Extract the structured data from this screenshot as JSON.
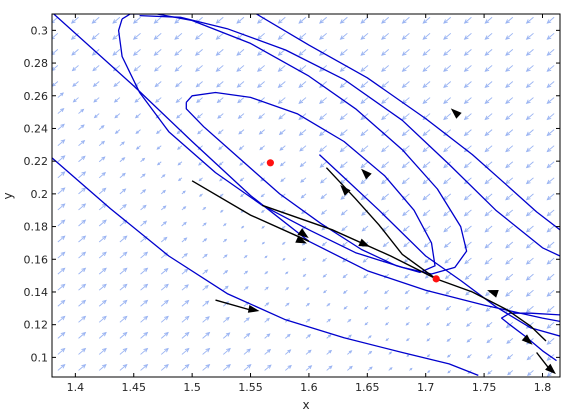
{
  "chart_data": {
    "type": "line",
    "title": "",
    "xlabel": "x",
    "ylabel": "y",
    "xlim": [
      1.38,
      1.815
    ],
    "ylim": [
      0.088,
      0.31
    ],
    "x_ticks": [
      1.4,
      1.45,
      1.5,
      1.55,
      1.6,
      1.65,
      1.7,
      1.75,
      1.8
    ],
    "y_ticks": [
      0.1,
      0.12,
      0.14,
      0.16,
      0.18,
      0.2,
      0.22,
      0.24,
      0.26,
      0.28,
      0.3
    ],
    "grid": false,
    "legend": "none",
    "colors": {
      "orbit": "#0000cd",
      "separatrix": "#000000",
      "equilibrium": "#ff1010",
      "vector_field": "#99b3f2"
    },
    "vector_field": {
      "x_range": [
        1.385,
        1.81
      ],
      "y_range": [
        0.092,
        0.308
      ],
      "columns": 25,
      "rows": 23
    },
    "equilibria": [
      {
        "x": 1.567,
        "y": 0.219
      },
      {
        "x": 1.709,
        "y": 0.148
      }
    ],
    "series": [
      {
        "values": [
          [
            1.38,
            0.311
          ],
          [
            1.45,
            0.266
          ],
          [
            1.5,
            0.232
          ],
          [
            1.55,
            0.199
          ],
          [
            1.6,
            0.171
          ],
          [
            1.65,
            0.153
          ],
          [
            1.7,
            0.141
          ],
          [
            1.75,
            0.132
          ],
          [
            1.8,
            0.124
          ],
          [
            1.815,
            0.122
          ]
        ]
      },
      {
        "values": [
          [
            1.38,
            0.222
          ],
          [
            1.43,
            0.191
          ],
          [
            1.48,
            0.162
          ],
          [
            1.53,
            0.139
          ],
          [
            1.58,
            0.123
          ],
          [
            1.63,
            0.112
          ],
          [
            1.68,
            0.103
          ],
          [
            1.72,
            0.096
          ],
          [
            1.745,
            0.089
          ]
        ]
      },
      {
        "values": [
          [
            1.455,
            0.309
          ],
          [
            1.49,
            0.308
          ],
          [
            1.53,
            0.301
          ],
          [
            1.58,
            0.288
          ],
          [
            1.63,
            0.27
          ],
          [
            1.68,
            0.245
          ],
          [
            1.72,
            0.218
          ],
          [
            1.76,
            0.19
          ],
          [
            1.8,
            0.167
          ],
          [
            1.815,
            0.162
          ]
        ]
      },
      {
        "values": [
          [
            1.555,
            0.31
          ],
          [
            1.6,
            0.291
          ],
          [
            1.65,
            0.271
          ],
          [
            1.7,
            0.246
          ],
          [
            1.74,
            0.224
          ],
          [
            1.77,
            0.205
          ],
          [
            1.795,
            0.189
          ],
          [
            1.815,
            0.178
          ]
        ]
      },
      {
        "values": [
          [
            1.609,
            0.224
          ],
          [
            1.63,
            0.21
          ],
          [
            1.66,
            0.19
          ],
          [
            1.7,
            0.162
          ],
          [
            1.73,
            0.147
          ],
          [
            1.76,
            0.131
          ],
          [
            1.79,
            0.118
          ],
          [
            1.815,
            0.113
          ]
        ]
      },
      {
        "values": [
          [
            1.815,
            0.126
          ],
          [
            1.79,
            0.127
          ],
          [
            1.772,
            0.127
          ],
          [
            1.765,
            0.124
          ],
          [
            1.772,
            0.12
          ],
          [
            1.785,
            0.113
          ],
          [
            1.8,
            0.104
          ],
          [
            1.812,
            0.098
          ]
        ]
      },
      {
        "values": [
          [
            1.44,
            0.307
          ],
          [
            1.447,
            0.31
          ],
          [
            1.47,
            0.31
          ],
          [
            1.5,
            0.306
          ],
          [
            1.55,
            0.292
          ],
          [
            1.6,
            0.272
          ],
          [
            1.64,
            0.252
          ],
          [
            1.68,
            0.227
          ],
          [
            1.71,
            0.203
          ],
          [
            1.73,
            0.18
          ],
          [
            1.735,
            0.165
          ],
          [
            1.725,
            0.155
          ],
          [
            1.705,
            0.151
          ],
          [
            1.68,
            0.155
          ],
          [
            1.64,
            0.164
          ],
          [
            1.6,
            0.178
          ],
          [
            1.56,
            0.193
          ],
          [
            1.52,
            0.213
          ],
          [
            1.48,
            0.238
          ],
          [
            1.455,
            0.262
          ],
          [
            1.44,
            0.284
          ],
          [
            1.437,
            0.3
          ],
          [
            1.44,
            0.307
          ]
        ]
      },
      {
        "values": [
          [
            1.495,
            0.256
          ],
          [
            1.5,
            0.26
          ],
          [
            1.52,
            0.262
          ],
          [
            1.55,
            0.259
          ],
          [
            1.59,
            0.249
          ],
          [
            1.63,
            0.232
          ],
          [
            1.665,
            0.211
          ],
          [
            1.69,
            0.19
          ],
          [
            1.705,
            0.17
          ],
          [
            1.708,
            0.156
          ],
          [
            1.695,
            0.152
          ],
          [
            1.675,
            0.156
          ],
          [
            1.645,
            0.166
          ],
          [
            1.61,
            0.182
          ],
          [
            1.575,
            0.2
          ],
          [
            1.54,
            0.222
          ],
          [
            1.51,
            0.241
          ],
          [
            1.495,
            0.252
          ],
          [
            1.495,
            0.256
          ]
        ]
      }
    ],
    "separatrices": [
      {
        "values": [
          [
            1.709,
            0.148
          ],
          [
            1.68,
            0.163
          ],
          [
            1.66,
            0.181
          ],
          [
            1.64,
            0.197
          ],
          [
            1.615,
            0.216
          ]
        ]
      },
      {
        "values": [
          [
            1.709,
            0.148
          ],
          [
            1.74,
            0.14
          ],
          [
            1.77,
            0.129
          ],
          [
            1.79,
            0.119
          ],
          [
            1.803,
            0.11
          ]
        ]
      },
      {
        "values": [
          [
            1.56,
            0.193
          ],
          [
            1.62,
            0.178
          ],
          [
            1.67,
            0.162
          ],
          [
            1.709,
            0.148
          ]
        ]
      },
      {
        "values": [
          [
            1.5,
            0.208
          ],
          [
            1.55,
            0.187
          ],
          [
            1.6,
            0.171
          ]
        ]
      },
      {
        "values": [
          [
            1.52,
            0.135
          ],
          [
            1.55,
            0.129
          ]
        ]
      },
      {
        "values": [
          [
            1.795,
            0.103
          ],
          [
            1.808,
            0.091
          ]
        ]
      }
    ],
    "arrows": [
      {
        "x": 1.596,
        "y": 0.175,
        "dir": [
          1,
          -0.72
        ]
      },
      {
        "x": 1.648,
        "y": 0.169,
        "dir": [
          1,
          -0.45
        ]
      },
      {
        "x": 1.63,
        "y": 0.203,
        "dir": [
          -1,
          1.1
        ]
      },
      {
        "x": 1.648,
        "y": 0.213,
        "dir": [
          -1,
          1.0
        ]
      },
      {
        "x": 1.725,
        "y": 0.25,
        "dir": [
          -1,
          0.9
        ]
      },
      {
        "x": 1.757,
        "y": 0.14,
        "dir": [
          -1,
          0.35
        ]
      },
      {
        "x": 1.788,
        "y": 0.11,
        "dir": [
          1,
          -0.9
        ]
      },
      {
        "x": 1.553,
        "y": 0.129,
        "dir": [
          1,
          -0.2
        ]
      },
      {
        "x": 1.594,
        "y": 0.171,
        "dir": [
          1,
          -0.45
        ]
      },
      {
        "x": 1.808,
        "y": 0.092,
        "dir": [
          1,
          -0.9
        ]
      }
    ]
  }
}
